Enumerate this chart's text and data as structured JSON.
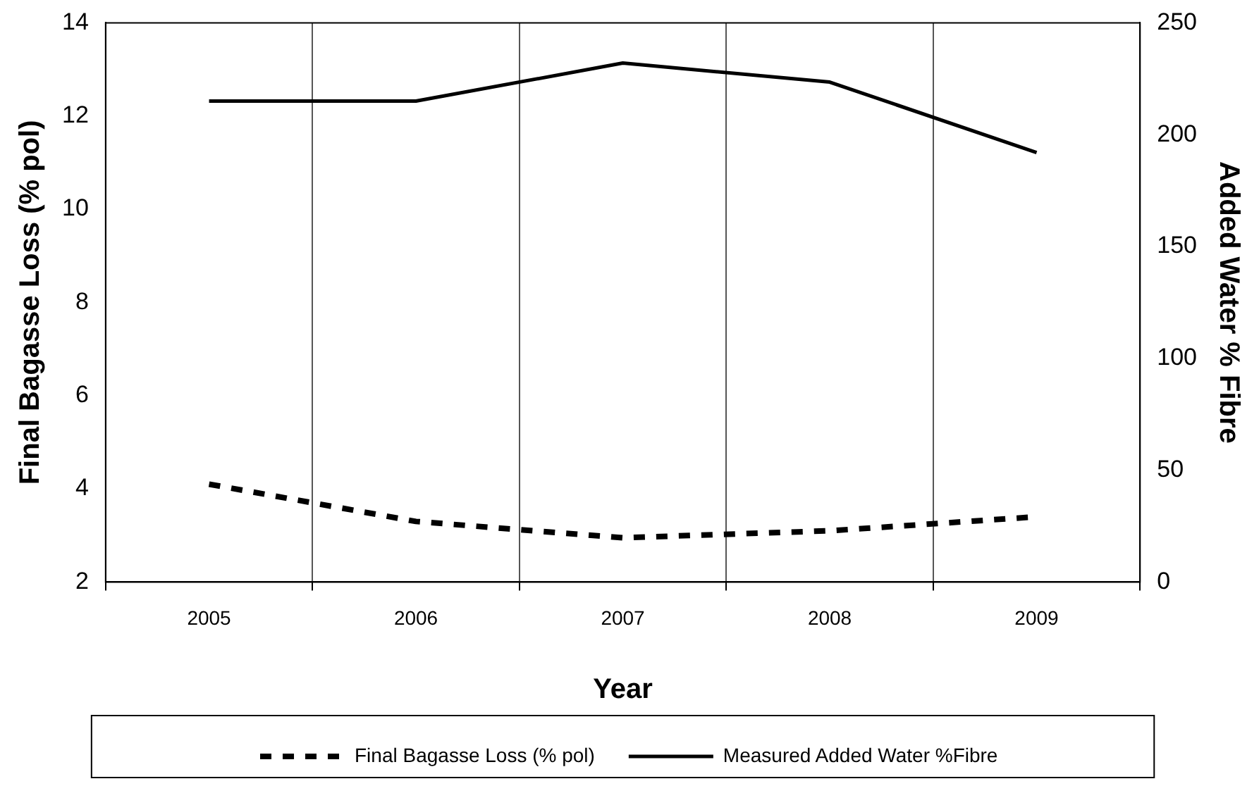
{
  "chart_data": {
    "type": "line",
    "xlabel": "Year",
    "ylabel": "Final Bagasse Loss (% pol)",
    "y2label": "Added Water % Fibre",
    "categories": [
      "2005",
      "2006",
      "2007",
      "2008",
      "2009"
    ],
    "series": [
      {
        "name": "Final Bagasse Loss (% pol)",
        "color": "#000000",
        "line_style": "dashed",
        "values": [
          4.1,
          3.3,
          2.95,
          3.1,
          3.4
        ]
      },
      {
        "name": "Measured Added Water %Fibre",
        "color": "#000000",
        "line_style": "solid",
        "axis": "y2",
        "values": [
          215,
          215,
          232,
          223.5,
          192
        ]
      }
    ],
    "ylim": [
      2,
      14
    ],
    "yticks": [
      2,
      4,
      6,
      8,
      10,
      12,
      14
    ],
    "y2lim": [
      0,
      250
    ],
    "y2ticks": [
      0,
      50,
      100,
      150,
      200,
      250
    ],
    "grid": "x",
    "legend": "bottom",
    "marker": "none"
  }
}
